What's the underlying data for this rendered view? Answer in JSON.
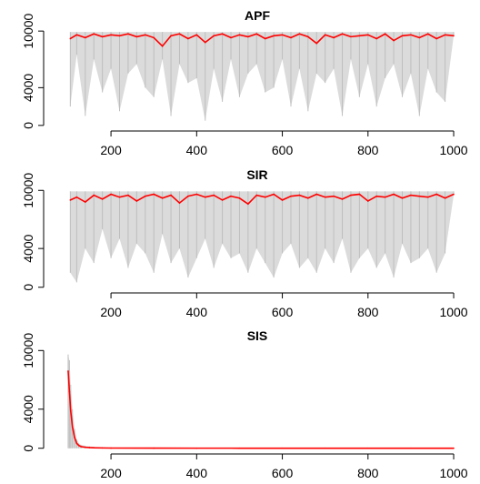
{
  "chart_data": [
    {
      "type": "line",
      "title": "APF",
      "xlim": [
        100,
        1000
      ],
      "ylim": [
        0,
        10000
      ],
      "x_ticks": [
        200,
        400,
        600,
        800,
        1000
      ],
      "y_ticks": [
        0,
        4000,
        10000
      ],
      "grid": false,
      "series": [
        {
          "kind": "band",
          "color": "#bebebe",
          "description": "gray spikes drop from ~10000 to min values",
          "x": [
            105,
            120,
            140,
            160,
            180,
            200,
            220,
            240,
            260,
            280,
            300,
            320,
            340,
            360,
            380,
            400,
            420,
            440,
            460,
            480,
            500,
            520,
            540,
            560,
            580,
            600,
            620,
            640,
            660,
            680,
            700,
            720,
            740,
            760,
            780,
            800,
            820,
            840,
            860,
            880,
            900,
            920,
            940,
            960,
            980,
            1000
          ],
          "low": [
            2000,
            7500,
            1000,
            7000,
            3500,
            6000,
            1500,
            5500,
            6500,
            4000,
            3000,
            7000,
            1000,
            6500,
            4500,
            5000,
            500,
            6000,
            2500,
            7000,
            3000,
            5500,
            6500,
            3500,
            4000,
            7000,
            2000,
            6000,
            1500,
            5500,
            4500,
            6000,
            1000,
            7000,
            3000,
            6500,
            2000,
            5000,
            6500,
            3000,
            5500,
            1000,
            6000,
            3500,
            2500,
            9500
          ]
        },
        {
          "kind": "line",
          "color": "#ff0000",
          "x": [
            105,
            120,
            140,
            160,
            180,
            200,
            220,
            240,
            260,
            280,
            300,
            320,
            340,
            360,
            380,
            400,
            420,
            440,
            460,
            480,
            500,
            520,
            540,
            560,
            580,
            600,
            620,
            640,
            660,
            680,
            700,
            720,
            740,
            760,
            780,
            800,
            820,
            840,
            860,
            880,
            900,
            920,
            940,
            960,
            980,
            1000
          ],
          "y": [
            9200,
            9600,
            9300,
            9700,
            9400,
            9600,
            9500,
            9700,
            9400,
            9600,
            9300,
            8400,
            9500,
            9700,
            9200,
            9600,
            8800,
            9500,
            9700,
            9300,
            9600,
            9400,
            9700,
            9200,
            9500,
            9600,
            9300,
            9700,
            9400,
            8700,
            9600,
            9300,
            9700,
            9400,
            9500,
            9600,
            9200,
            9700,
            9000,
            9500,
            9600,
            9300,
            9700,
            9200,
            9600,
            9500
          ]
        }
      ]
    },
    {
      "type": "line",
      "title": "SIR",
      "xlim": [
        100,
        1000
      ],
      "ylim": [
        0,
        10000
      ],
      "x_ticks": [
        200,
        400,
        600,
        800,
        1000
      ],
      "y_ticks": [
        0,
        4000,
        10000
      ],
      "grid": false,
      "series": [
        {
          "kind": "band",
          "color": "#bebebe",
          "x": [
            105,
            120,
            140,
            160,
            180,
            200,
            220,
            240,
            260,
            280,
            300,
            320,
            340,
            360,
            380,
            400,
            420,
            440,
            460,
            480,
            500,
            520,
            540,
            560,
            580,
            600,
            620,
            640,
            660,
            680,
            700,
            720,
            740,
            760,
            780,
            800,
            820,
            840,
            860,
            880,
            900,
            920,
            940,
            960,
            980,
            1000
          ],
          "low": [
            1500,
            500,
            4000,
            2500,
            6000,
            3000,
            5000,
            2000,
            4500,
            3500,
            1500,
            5500,
            2500,
            4000,
            1000,
            3000,
            5000,
            2000,
            4500,
            3000,
            3500,
            1500,
            4000,
            2500,
            1000,
            3500,
            4500,
            2000,
            3000,
            1500,
            4000,
            2500,
            5000,
            1500,
            3000,
            4000,
            2000,
            3500,
            1000,
            4500,
            2500,
            3000,
            4000,
            1500,
            3500,
            9500
          ]
        },
        {
          "kind": "line",
          "color": "#ff0000",
          "x": [
            105,
            120,
            140,
            160,
            180,
            200,
            220,
            240,
            260,
            280,
            300,
            320,
            340,
            360,
            380,
            400,
            420,
            440,
            460,
            480,
            500,
            520,
            540,
            560,
            580,
            600,
            620,
            640,
            660,
            680,
            700,
            720,
            740,
            760,
            780,
            800,
            820,
            840,
            860,
            880,
            900,
            920,
            940,
            960,
            980,
            1000
          ],
          "y": [
            9000,
            9300,
            8800,
            9500,
            9100,
            9600,
            9300,
            9500,
            8900,
            9400,
            9600,
            9200,
            9500,
            8700,
            9400,
            9600,
            9300,
            9500,
            9000,
            9400,
            9200,
            8600,
            9500,
            9300,
            9600,
            9000,
            9400,
            9500,
            9200,
            9600,
            9300,
            9400,
            9100,
            9500,
            9600,
            8900,
            9400,
            9300,
            9600,
            9200,
            9500,
            9400,
            9300,
            9600,
            9200,
            9600
          ]
        }
      ]
    },
    {
      "type": "line",
      "title": "SIS",
      "xlim": [
        100,
        1000
      ],
      "ylim": [
        0,
        10000
      ],
      "x_ticks": [
        200,
        400,
        600,
        800,
        1000
      ],
      "y_ticks": [
        0,
        4000,
        10000
      ],
      "grid": false,
      "series": [
        {
          "kind": "band",
          "color": "#bebebe",
          "x": [
            100,
            103,
            106,
            110,
            115,
            120,
            125,
            130,
            140,
            150,
            160,
            180,
            200,
            300,
            400,
            500,
            600,
            700,
            800,
            900,
            1000
          ],
          "high": [
            9600,
            9000,
            6500,
            4000,
            2000,
            900,
            500,
            350,
            250,
            180,
            150,
            100,
            80,
            50,
            40,
            30,
            20,
            20,
            20,
            20,
            20
          ],
          "low": [
            0,
            0,
            0,
            0,
            0,
            0,
            0,
            0,
            0,
            0,
            0,
            0,
            0,
            0,
            0,
            0,
            0,
            0,
            0,
            0,
            0
          ]
        },
        {
          "kind": "line",
          "color": "#ff0000",
          "x": [
            100,
            103,
            106,
            110,
            115,
            120,
            125,
            130,
            140,
            150,
            160,
            180,
            200,
            300,
            400,
            500,
            600,
            700,
            800,
            900,
            1000
          ],
          "y": [
            7900,
            5800,
            3800,
            2200,
            1100,
            500,
            280,
            170,
            100,
            70,
            50,
            30,
            20,
            10,
            8,
            6,
            5,
            5,
            5,
            5,
            5
          ]
        }
      ]
    }
  ]
}
